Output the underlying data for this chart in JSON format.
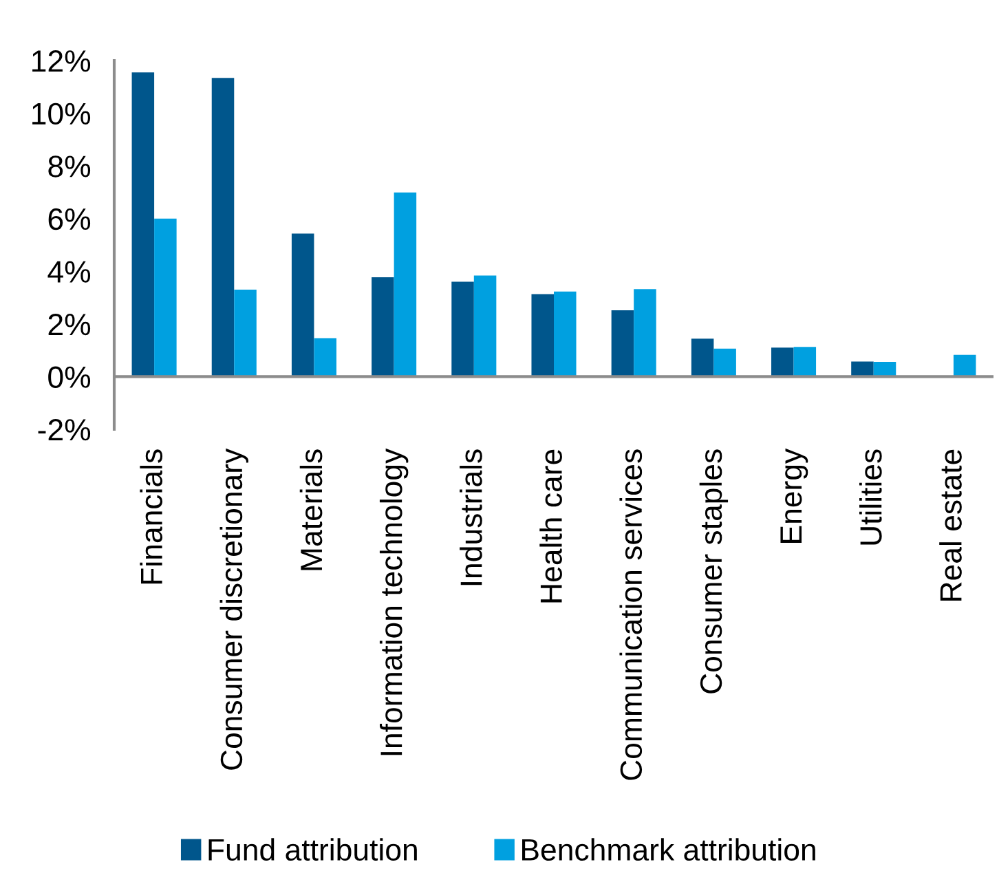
{
  "chart_data": {
    "type": "bar",
    "categories": [
      "Financials",
      "Consumer discretionary",
      "Materials",
      "Information technology",
      "Industrials",
      "Health care",
      "Communication services",
      "Consumer staples",
      "Energy",
      "Utilities",
      "Real estate"
    ],
    "series": [
      {
        "name": "Fund attribution",
        "color": "#00568c",
        "values": [
          11.55,
          11.34,
          5.43,
          3.77,
          3.6,
          3.13,
          2.52,
          1.44,
          1.1,
          0.57,
          null
        ]
      },
      {
        "name": "Benchmark attribution",
        "color": "#00a0e0",
        "values": [
          6.0,
          3.3,
          1.46,
          6.99,
          3.84,
          3.23,
          3.32,
          1.06,
          1.13,
          0.56,
          0.83
        ]
      }
    ],
    "ylim": [
      -2,
      12
    ],
    "yticks": [
      {
        "value": -2,
        "label": "-2%"
      },
      {
        "value": 0,
        "label": "0%"
      },
      {
        "value": 2,
        "label": "2%"
      },
      {
        "value": 4,
        "label": "4%"
      },
      {
        "value": 6,
        "label": "6%"
      },
      {
        "value": 8,
        "label": "8%"
      },
      {
        "value": 10,
        "label": "10%"
      },
      {
        "value": 12,
        "label": "12%"
      }
    ],
    "grid": false,
    "legend": "bottom"
  }
}
